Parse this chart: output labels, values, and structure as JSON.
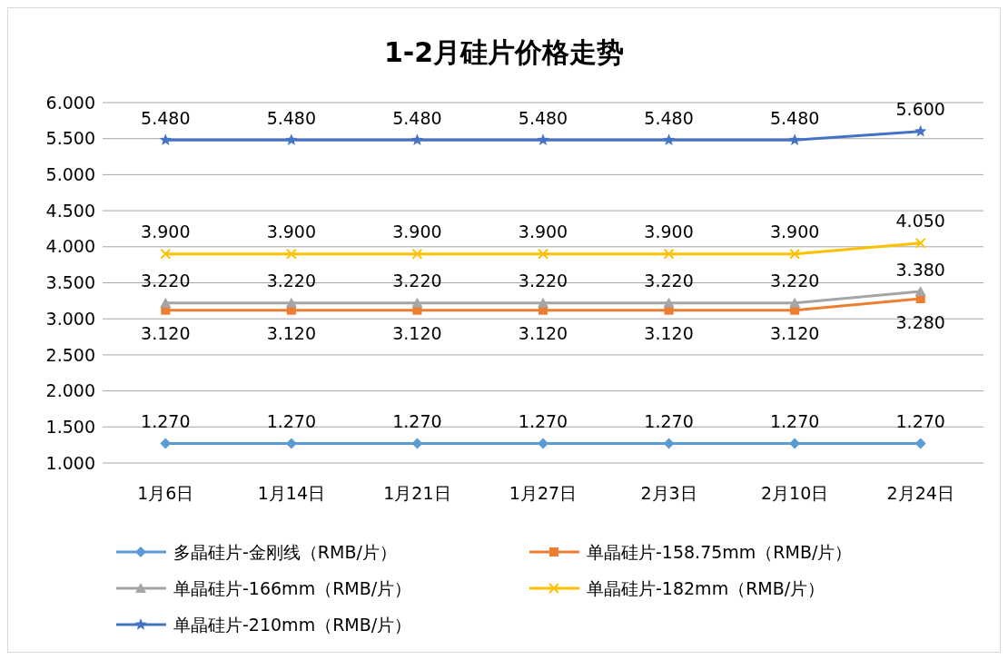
{
  "chart_data": {
    "type": "line",
    "title": "1-2月硅片价格走势",
    "categories": [
      "1月6日",
      "1月14日",
      "1月21日",
      "1月27日",
      "2月3日",
      "2月10日",
      "2月24日"
    ],
    "ylim": [
      1,
      6
    ],
    "yticks": [
      {
        "value": 1,
        "label": "1.000"
      },
      {
        "value": 1.5,
        "label": "1.500"
      },
      {
        "value": 2,
        "label": "2.000"
      },
      {
        "value": 2.5,
        "label": "2.500"
      },
      {
        "value": 3,
        "label": "3.000"
      },
      {
        "value": 3.5,
        "label": "3.500"
      },
      {
        "value": 4,
        "label": "4.000"
      },
      {
        "value": 4.5,
        "label": "4.500"
      },
      {
        "value": 5,
        "label": "5.000"
      },
      {
        "value": 5.5,
        "label": "5.500"
      },
      {
        "value": 6,
        "label": "6.000"
      }
    ],
    "grid": "y",
    "legend": "bottom",
    "series": [
      {
        "name": "多晶硅片-金刚线（RMB/片）",
        "color": "#5b9bd5",
        "marker": "diamond",
        "values": [
          1.27,
          1.27,
          1.27,
          1.27,
          1.27,
          1.27,
          1.27
        ],
        "value_labels": [
          "1.270",
          "1.270",
          "1.270",
          "1.270",
          "1.270",
          "1.270",
          "1.270"
        ]
      },
      {
        "name": "单晶硅片-158.75mm（RMB/片）",
        "color": "#ed7d31",
        "marker": "square",
        "values": [
          3.12,
          3.12,
          3.12,
          3.12,
          3.12,
          3.12,
          3.28
        ],
        "value_labels": [
          "3.120",
          "3.120",
          "3.120",
          "3.120",
          "3.120",
          "3.120",
          "3.280"
        ]
      },
      {
        "name": "单晶硅片-166mm（RMB/片）",
        "color": "#a5a5a5",
        "marker": "triangle",
        "values": [
          3.22,
          3.22,
          3.22,
          3.22,
          3.22,
          3.22,
          3.38
        ],
        "value_labels": [
          "3.220",
          "3.220",
          "3.220",
          "3.220",
          "3.220",
          "3.220",
          "3.380"
        ]
      },
      {
        "name": "单晶硅片-182mm（RMB/片）",
        "color": "#ffc000",
        "marker": "cross",
        "values": [
          3.9,
          3.9,
          3.9,
          3.9,
          3.9,
          3.9,
          4.05
        ],
        "value_labels": [
          "3.900",
          "3.900",
          "3.900",
          "3.900",
          "3.900",
          "3.900",
          "4.050"
        ]
      },
      {
        "name": "单晶硅片-210mm（RMB/片）",
        "color": "#4472c4",
        "marker": "star",
        "values": [
          5.48,
          5.48,
          5.48,
          5.48,
          5.48,
          5.48,
          5.6
        ],
        "value_labels": [
          "5.480",
          "5.480",
          "5.480",
          "5.480",
          "5.480",
          "5.480",
          "5.600"
        ]
      }
    ]
  }
}
